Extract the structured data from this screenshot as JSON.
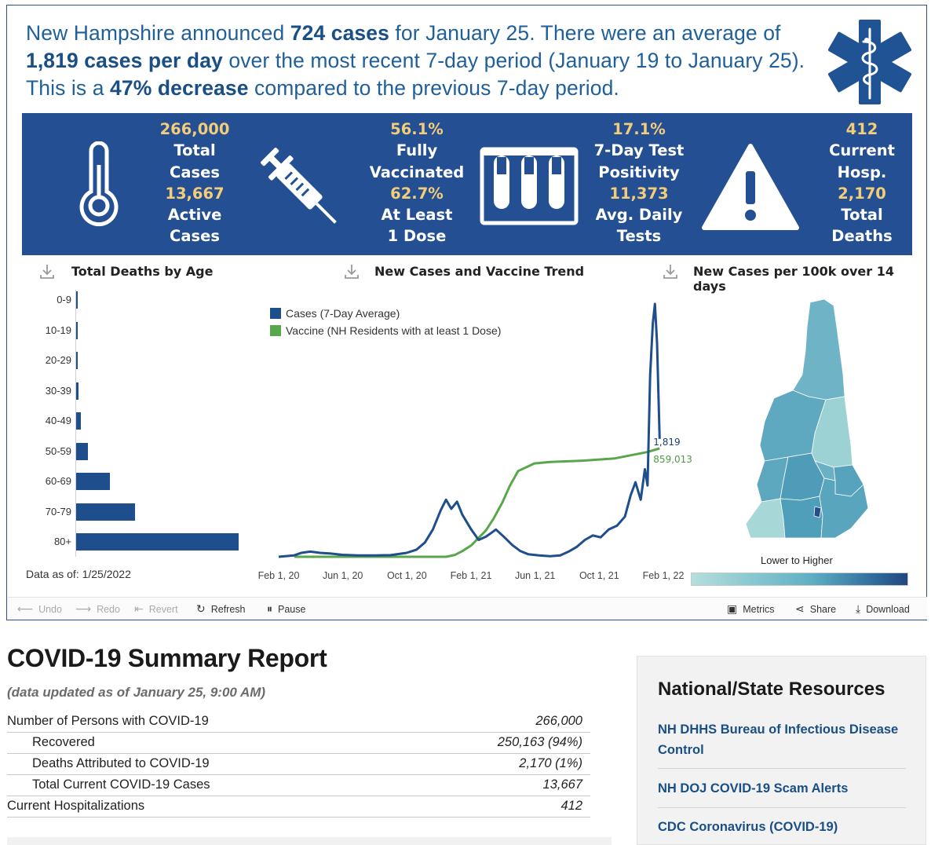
{
  "headline": {
    "part1": "New Hampshire announced ",
    "bold1": "724 cases",
    "part2": " for January 25. There were an average of ",
    "bold2": "1,819 cases per day",
    "part3": " over the most recent 7-day period (January 19 to January 25). This is a ",
    "bold3": "47% decrease",
    "part4": " compared to the previous 7-day period."
  },
  "kpis": [
    {
      "l1": "266,000",
      "l2": "Total",
      "l3": "Cases",
      "l4": "13,667",
      "l5": "Active",
      "l6": "Cases"
    },
    {
      "l1": "56.1%",
      "l2": "Fully",
      "l3": "Vaccinated",
      "l4": "62.7%",
      "l5": "At Least",
      "l6": "1 Dose"
    },
    {
      "l1": "17.1%",
      "l2": "7-Day Test",
      "l3": "Positivity",
      "l4": "11,373",
      "l5": "Avg. Daily",
      "l6": "Tests"
    },
    {
      "l1": "412",
      "l2": "Current",
      "l3": "Hosp.",
      "l4": "2,170",
      "l5": "Total",
      "l6": "Deaths"
    }
  ],
  "icons": [
    "star-of-life-icon",
    "thermometer-icon",
    "syringe-icon",
    "test-tubes-icon",
    "warning-icon",
    "download-icon"
  ],
  "sections": {
    "deaths_by_age": "Total Deaths by Age",
    "trend": "New Cases and Vaccine Trend",
    "map": "New Cases per 100k over 14 days"
  },
  "data_as_of": "Data as of: 1/25/2022",
  "chart_data": [
    {
      "type": "bar",
      "title": "Total Deaths by Age",
      "orientation": "horizontal",
      "categories": [
        "0-9",
        "10-19",
        "20-29",
        "30-39",
        "40-49",
        "50-59",
        "60-69",
        "70-79",
        "80+"
      ],
      "values": [
        1,
        2,
        3,
        14,
        30,
        80,
        225,
        390,
        1080
      ]
    },
    {
      "type": "line",
      "title": "New Cases and Vaccine Trend",
      "x_ticks": [
        "Feb 1, 20",
        "Jun 1, 20",
        "Oct 1, 20",
        "Feb 1, 21",
        "Jun 1, 21",
        "Oct 1, 21",
        "Feb 1, 22"
      ],
      "series": [
        {
          "name": "Cases (7-Day Average)",
          "color": "#1f4e8c",
          "end_label": "1,819",
          "x": [
            "2020-02-01",
            "2020-03-01",
            "2020-03-15",
            "2020-04-01",
            "2020-04-20",
            "2020-05-10",
            "2020-06-01",
            "2020-07-01",
            "2020-08-01",
            "2020-09-01",
            "2020-10-01",
            "2020-10-20",
            "2020-11-05",
            "2020-11-20",
            "2020-12-05",
            "2020-12-15",
            "2020-12-25",
            "2021-01-05",
            "2021-01-15",
            "2021-02-01",
            "2021-02-15",
            "2021-03-01",
            "2021-03-20",
            "2021-04-05",
            "2021-04-20",
            "2021-05-05",
            "2021-05-20",
            "2021-06-10",
            "2021-07-01",
            "2021-07-20",
            "2021-08-05",
            "2021-08-20",
            "2021-09-05",
            "2021-09-20",
            "2021-10-05",
            "2021-10-20",
            "2021-11-05",
            "2021-11-20",
            "2021-12-01",
            "2021-12-10",
            "2021-12-20",
            "2021-12-28",
            "2022-01-02",
            "2022-01-07",
            "2022-01-12",
            "2022-01-16",
            "2022-01-20",
            "2022-01-25"
          ],
          "y": [
            0,
            20,
            60,
            80,
            60,
            50,
            30,
            20,
            20,
            25,
            60,
            110,
            220,
            420,
            720,
            880,
            740,
            850,
            650,
            420,
            260,
            310,
            420,
            300,
            180,
            90,
            40,
            20,
            10,
            20,
            80,
            150,
            260,
            330,
            300,
            420,
            480,
            620,
            950,
            1150,
            880,
            1350,
            1100,
            2800,
            3600,
            3900,
            3300,
            1819
          ]
        },
        {
          "name": "Vaccine (NH Residents with at least 1 Dose)",
          "color": "#5aa64d",
          "end_label": "859,013",
          "x": [
            "2020-12-15",
            "2021-01-01",
            "2021-01-15",
            "2021-02-01",
            "2021-02-15",
            "2021-03-01",
            "2021-03-15",
            "2021-04-01",
            "2021-04-15",
            "2021-05-01",
            "2021-06-01",
            "2021-07-01",
            "2021-09-01",
            "2021-11-01",
            "2022-01-01",
            "2022-01-25"
          ],
          "y": [
            0,
            15000,
            45000,
            90000,
            150000,
            210000,
            300000,
            430000,
            560000,
            680000,
            740000,
            752000,
            762000,
            780000,
            830000,
            859013
          ]
        }
      ]
    }
  ],
  "map_legend": "Lower to Higher",
  "toolbar": {
    "undo": "Undo",
    "redo": "Redo",
    "revert": "Revert",
    "refresh": "Refresh",
    "pause": "Pause",
    "metrics": "Metrics",
    "share": "Share",
    "download": "Download"
  },
  "report": {
    "title": "COVID-19 Summary Report",
    "updated": "(data updated as of January 25, 9:00 AM)",
    "rows": [
      {
        "label": "Number of Persons with COVID-19",
        "value": "266,000"
      },
      {
        "label": "Recovered",
        "value": "250,163 (94%)"
      },
      {
        "label": "Deaths Attributed to COVID-19",
        "value": "2,170 (1%)"
      },
      {
        "label": "Total Current COVID-19 Cases",
        "value": "13,667"
      },
      {
        "label": "Current Hospitalizations",
        "value": "412"
      }
    ]
  },
  "resources": {
    "title": "National/State Resources",
    "links": [
      "NH DHHS Bureau of Infectious Disease Control",
      "NH DOJ COVID-19 Scam Alerts",
      "CDC Coronavirus (COVID-19)"
    ]
  }
}
